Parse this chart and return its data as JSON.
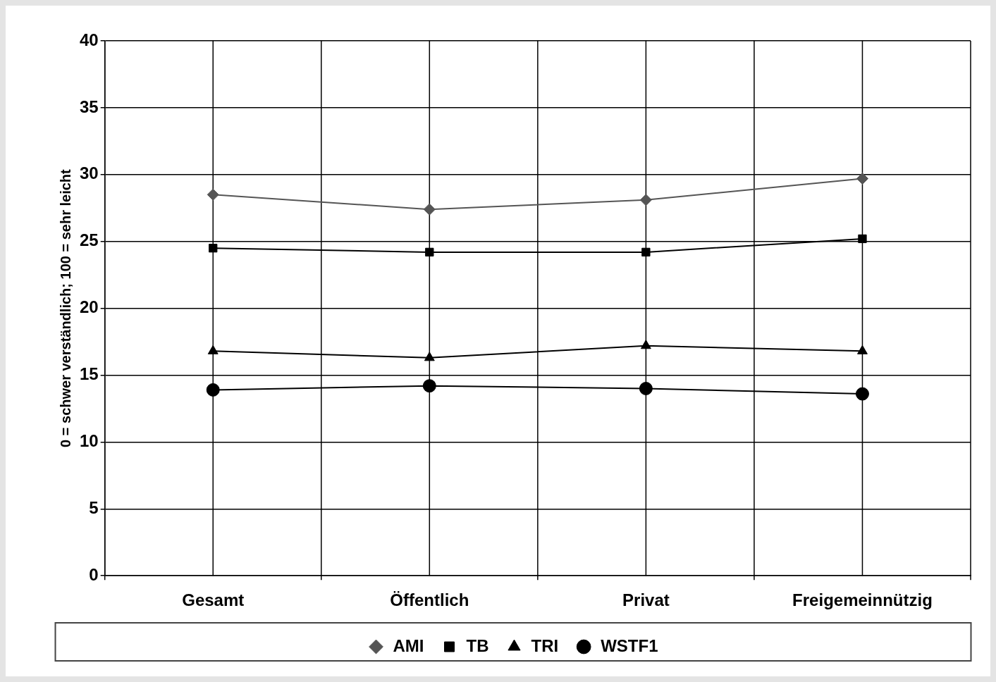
{
  "chart_data": {
    "type": "line",
    "ylabel": "0 = schwer verständlich; 100 = sehr leicht",
    "categories": [
      "Gesamt",
      "Öffentlich",
      "Privat",
      "Freigemeinnützig"
    ],
    "series": [
      {
        "name": "AMI",
        "color": "#555555",
        "marker": "diamond",
        "values": [
          28.5,
          27.4,
          28.1,
          29.7
        ]
      },
      {
        "name": "TB",
        "color": "#000000",
        "marker": "square",
        "values": [
          24.5,
          24.2,
          24.2,
          25.2
        ]
      },
      {
        "name": "TRI",
        "color": "#000000",
        "marker": "triangle",
        "values": [
          16.8,
          16.3,
          17.2,
          16.8
        ]
      },
      {
        "name": "WSTF1",
        "color": "#000000",
        "marker": "circle",
        "values": [
          13.9,
          14.2,
          14.0,
          13.6
        ]
      }
    ],
    "ylim": [
      0,
      40
    ],
    "yticks": [
      0,
      5,
      10,
      15,
      20,
      25,
      30,
      35,
      40
    ],
    "grid": true,
    "legend": "bottom",
    "line_style": "solid"
  }
}
